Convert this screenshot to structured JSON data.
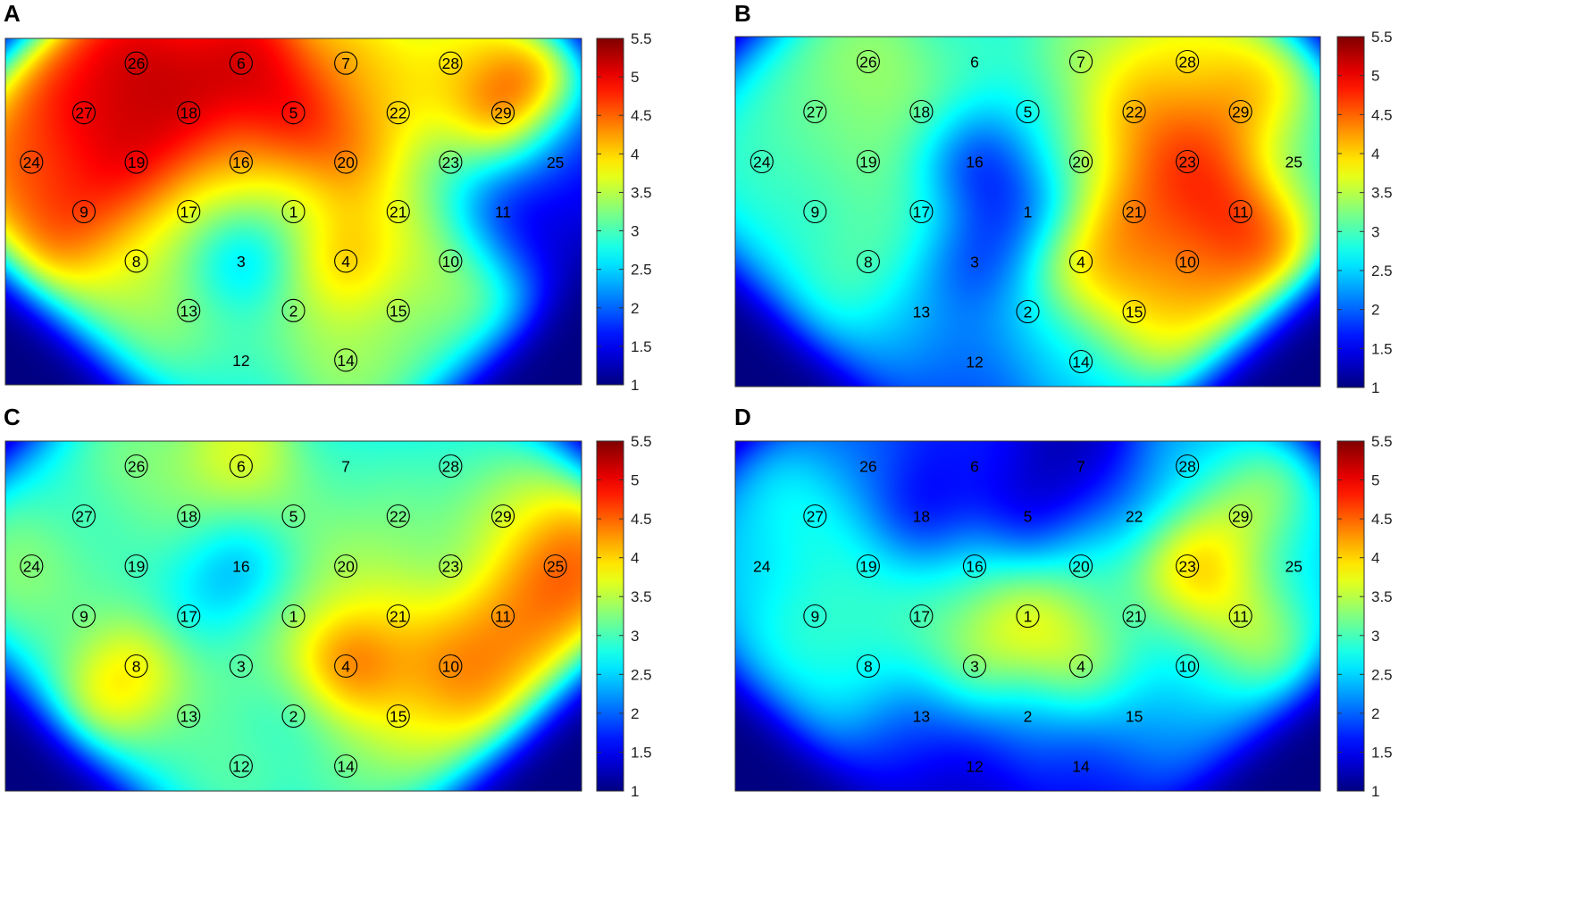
{
  "colormap": {
    "name": "jet",
    "stops": [
      "#00007f",
      "#0000ff",
      "#00ffff",
      "#ffff00",
      "#ff0000",
      "#7f0000"
    ]
  },
  "chart_data": [
    {
      "type": "heatmap",
      "panel_label": "A",
      "colorbar": {
        "range": [
          1,
          5.5
        ],
        "ticks": [
          "1",
          "1.5",
          "2",
          "2.5",
          "3",
          "3.5",
          "4",
          "4.5",
          "5",
          "5.5"
        ]
      },
      "electrodes": [
        {
          "id": "1",
          "col": 5,
          "row": 4,
          "value": 3.5,
          "circled": true
        },
        {
          "id": "2",
          "col": 5,
          "row": 6,
          "value": 3.5,
          "circled": true
        },
        {
          "id": "3",
          "col": 4,
          "row": 5,
          "value": 2.0,
          "circled": false
        },
        {
          "id": "4",
          "col": 6,
          "row": 5,
          "value": 4.7,
          "circled": true
        },
        {
          "id": "5",
          "col": 5,
          "row": 2,
          "value": 5.5,
          "circled": true
        },
        {
          "id": "6",
          "col": 4,
          "row": 1,
          "value": 5.5,
          "circled": true
        },
        {
          "id": "7",
          "col": 6,
          "row": 1,
          "value": 4.3,
          "circled": true
        },
        {
          "id": "8",
          "col": 2,
          "row": 5,
          "value": 3.8,
          "circled": true
        },
        {
          "id": "9",
          "col": 1,
          "row": 4,
          "value": 5.1,
          "circled": true
        },
        {
          "id": "10",
          "col": 8,
          "row": 5,
          "value": 3.7,
          "circled": true
        },
        {
          "id": "11",
          "col": 9,
          "row": 4,
          "value": 1.3,
          "circled": false
        },
        {
          "id": "12",
          "col": 4,
          "row": 7,
          "value": 3.0,
          "circled": false
        },
        {
          "id": "13",
          "col": 3,
          "row": 6,
          "value": 3.6,
          "circled": true
        },
        {
          "id": "14",
          "col": 6,
          "row": 7,
          "value": 3.6,
          "circled": true
        },
        {
          "id": "15",
          "col": 7,
          "row": 6,
          "value": 3.4,
          "circled": true
        },
        {
          "id": "16",
          "col": 4,
          "row": 3,
          "value": 4.3,
          "circled": true
        },
        {
          "id": "17",
          "col": 3,
          "row": 4,
          "value": 3.8,
          "circled": true
        },
        {
          "id": "18",
          "col": 3,
          "row": 2,
          "value": 5.5,
          "circled": true
        },
        {
          "id": "19",
          "col": 2,
          "row": 3,
          "value": 5.5,
          "circled": true
        },
        {
          "id": "20",
          "col": 6,
          "row": 3,
          "value": 4.8,
          "circled": true
        },
        {
          "id": "21",
          "col": 7,
          "row": 4,
          "value": 3.8,
          "circled": true
        },
        {
          "id": "22",
          "col": 7,
          "row": 2,
          "value": 4.2,
          "circled": true
        },
        {
          "id": "23",
          "col": 8,
          "row": 3,
          "value": 3.0,
          "circled": true
        },
        {
          "id": "24",
          "col": 0,
          "row": 3,
          "value": 4.8,
          "circled": true
        },
        {
          "id": "25",
          "col": 10,
          "row": 3,
          "value": 1.6,
          "circled": false
        },
        {
          "id": "26",
          "col": 2,
          "row": 1,
          "value": 5.5,
          "circled": true
        },
        {
          "id": "27",
          "col": 1,
          "row": 2,
          "value": 5.3,
          "circled": true
        },
        {
          "id": "28",
          "col": 8,
          "row": 1,
          "value": 4.0,
          "circled": true
        },
        {
          "id": "29",
          "col": 9,
          "row": 2,
          "value": 5.4,
          "circled": true
        }
      ]
    },
    {
      "type": "heatmap",
      "panel_label": "B",
      "colorbar": {
        "range": [
          1,
          5.5
        ],
        "ticks": [
          "1",
          "1.5",
          "2",
          "2.5",
          "3",
          "3.5",
          "4",
          "4.5",
          "5",
          "5.5"
        ]
      },
      "electrodes": [
        {
          "id": "1",
          "col": 5,
          "row": 4,
          "value": 1.7,
          "circled": false
        },
        {
          "id": "2",
          "col": 5,
          "row": 6,
          "value": 2.7,
          "circled": true
        },
        {
          "id": "3",
          "col": 4,
          "row": 5,
          "value": 1.5,
          "circled": false
        },
        {
          "id": "4",
          "col": 6,
          "row": 5,
          "value": 4.6,
          "circled": true
        },
        {
          "id": "5",
          "col": 5,
          "row": 2,
          "value": 2.8,
          "circled": true
        },
        {
          "id": "6",
          "col": 4,
          "row": 1,
          "value": 3.1,
          "circled": false
        },
        {
          "id": "7",
          "col": 6,
          "row": 1,
          "value": 3.6,
          "circled": true
        },
        {
          "id": "8",
          "col": 2,
          "row": 5,
          "value": 3.3,
          "circled": true
        },
        {
          "id": "9",
          "col": 1,
          "row": 4,
          "value": 3.0,
          "circled": true
        },
        {
          "id": "10",
          "col": 8,
          "row": 5,
          "value": 4.6,
          "circled": true
        },
        {
          "id": "11",
          "col": 9,
          "row": 4,
          "value": 5.3,
          "circled": true
        },
        {
          "id": "12",
          "col": 4,
          "row": 7,
          "value": 2.0,
          "circled": false
        },
        {
          "id": "13",
          "col": 3,
          "row": 6,
          "value": 2.5,
          "circled": false
        },
        {
          "id": "14",
          "col": 6,
          "row": 7,
          "value": 2.6,
          "circled": true
        },
        {
          "id": "15",
          "col": 7,
          "row": 6,
          "value": 4.2,
          "circled": true
        },
        {
          "id": "16",
          "col": 4,
          "row": 3,
          "value": 1.2,
          "circled": false
        },
        {
          "id": "17",
          "col": 3,
          "row": 4,
          "value": 3.2,
          "circled": true
        },
        {
          "id": "18",
          "col": 3,
          "row": 2,
          "value": 3.5,
          "circled": true
        },
        {
          "id": "19",
          "col": 2,
          "row": 3,
          "value": 3.4,
          "circled": true
        },
        {
          "id": "20",
          "col": 6,
          "row": 3,
          "value": 3.5,
          "circled": true
        },
        {
          "id": "21",
          "col": 7,
          "row": 4,
          "value": 4.8,
          "circled": true
        },
        {
          "id": "22",
          "col": 7,
          "row": 2,
          "value": 4.6,
          "circled": true
        },
        {
          "id": "23",
          "col": 8,
          "row": 3,
          "value": 5.2,
          "circled": true
        },
        {
          "id": "24",
          "col": 0,
          "row": 3,
          "value": 3.1,
          "circled": true
        },
        {
          "id": "25",
          "col": 10,
          "row": 3,
          "value": 3.0,
          "circled": false
        },
        {
          "id": "26",
          "col": 2,
          "row": 1,
          "value": 3.6,
          "circled": true
        },
        {
          "id": "27",
          "col": 1,
          "row": 2,
          "value": 3.3,
          "circled": true
        },
        {
          "id": "28",
          "col": 8,
          "row": 1,
          "value": 4.0,
          "circled": true
        },
        {
          "id": "29",
          "col": 9,
          "row": 2,
          "value": 4.6,
          "circled": true
        }
      ]
    },
    {
      "type": "heatmap",
      "panel_label": "C",
      "colorbar": {
        "range": [
          1,
          5.5
        ],
        "ticks": [
          "1",
          "1.5",
          "2",
          "2.5",
          "3",
          "3.5",
          "4",
          "4.5",
          "5",
          "5.5"
        ]
      },
      "electrodes": [
        {
          "id": "1",
          "col": 5,
          "row": 4,
          "value": 3.5,
          "circled": true
        },
        {
          "id": "2",
          "col": 5,
          "row": 6,
          "value": 2.8,
          "circled": true
        },
        {
          "id": "3",
          "col": 4,
          "row": 5,
          "value": 3.3,
          "circled": true
        },
        {
          "id": "4",
          "col": 6,
          "row": 5,
          "value": 5.3,
          "circled": true
        },
        {
          "id": "5",
          "col": 5,
          "row": 2,
          "value": 3.4,
          "circled": true
        },
        {
          "id": "6",
          "col": 4,
          "row": 1,
          "value": 4.1,
          "circled": true
        },
        {
          "id": "7",
          "col": 6,
          "row": 1,
          "value": 3.0,
          "circled": false
        },
        {
          "id": "8",
          "col": 2,
          "row": 5,
          "value": 4.6,
          "circled": true
        },
        {
          "id": "9",
          "col": 1,
          "row": 4,
          "value": 3.2,
          "circled": true
        },
        {
          "id": "10",
          "col": 8,
          "row": 5,
          "value": 4.8,
          "circled": true
        },
        {
          "id": "11",
          "col": 9,
          "row": 4,
          "value": 4.7,
          "circled": true
        },
        {
          "id": "12",
          "col": 4,
          "row": 7,
          "value": 3.3,
          "circled": true
        },
        {
          "id": "13",
          "col": 3,
          "row": 6,
          "value": 3.2,
          "circled": true
        },
        {
          "id": "14",
          "col": 6,
          "row": 7,
          "value": 3.3,
          "circled": true
        },
        {
          "id": "15",
          "col": 7,
          "row": 6,
          "value": 3.9,
          "circled": true
        },
        {
          "id": "16",
          "col": 4,
          "row": 3,
          "value": 2.0,
          "circled": false
        },
        {
          "id": "17",
          "col": 3,
          "row": 4,
          "value": 2.6,
          "circled": true
        },
        {
          "id": "18",
          "col": 3,
          "row": 2,
          "value": 3.4,
          "circled": true
        },
        {
          "id": "19",
          "col": 2,
          "row": 3,
          "value": 3.1,
          "circled": true
        },
        {
          "id": "20",
          "col": 6,
          "row": 3,
          "value": 3.6,
          "circled": true
        },
        {
          "id": "21",
          "col": 7,
          "row": 4,
          "value": 4.0,
          "circled": true
        },
        {
          "id": "22",
          "col": 7,
          "row": 2,
          "value": 3.4,
          "circled": true
        },
        {
          "id": "23",
          "col": 8,
          "row": 3,
          "value": 3.3,
          "circled": true
        },
        {
          "id": "24",
          "col": 0,
          "row": 3,
          "value": 3.6,
          "circled": true
        },
        {
          "id": "25",
          "col": 10,
          "row": 3,
          "value": 5.0,
          "circled": true
        },
        {
          "id": "26",
          "col": 2,
          "row": 1,
          "value": 3.5,
          "circled": true
        },
        {
          "id": "27",
          "col": 1,
          "row": 2,
          "value": 3.0,
          "circled": true
        },
        {
          "id": "28",
          "col": 8,
          "row": 1,
          "value": 3.0,
          "circled": true
        },
        {
          "id": "29",
          "col": 9,
          "row": 2,
          "value": 3.8,
          "circled": true
        }
      ]
    },
    {
      "type": "heatmap",
      "panel_label": "D",
      "colorbar": {
        "range": [
          1,
          5.5
        ],
        "ticks": [
          "1",
          "1.5",
          "2",
          "2.5",
          "3",
          "3.5",
          "4",
          "4.5",
          "5",
          "5.5"
        ]
      },
      "electrodes": [
        {
          "id": "1",
          "col": 5,
          "row": 4,
          "value": 4.3,
          "circled": true
        },
        {
          "id": "2",
          "col": 5,
          "row": 6,
          "value": 2.3,
          "circled": false
        },
        {
          "id": "3",
          "col": 4,
          "row": 5,
          "value": 3.8,
          "circled": true
        },
        {
          "id": "4",
          "col": 6,
          "row": 5,
          "value": 4.0,
          "circled": true
        },
        {
          "id": "5",
          "col": 5,
          "row": 2,
          "value": 1.1,
          "circled": false
        },
        {
          "id": "6",
          "col": 4,
          "row": 1,
          "value": 1.8,
          "circled": false
        },
        {
          "id": "7",
          "col": 6,
          "row": 1,
          "value": 1.2,
          "circled": false
        },
        {
          "id": "8",
          "col": 2,
          "row": 5,
          "value": 2.9,
          "circled": true
        },
        {
          "id": "9",
          "col": 1,
          "row": 4,
          "value": 3.1,
          "circled": true
        },
        {
          "id": "10",
          "col": 8,
          "row": 5,
          "value": 2.7,
          "circled": true
        },
        {
          "id": "11",
          "col": 9,
          "row": 4,
          "value": 4.0,
          "circled": true
        },
        {
          "id": "12",
          "col": 4,
          "row": 7,
          "value": 1.3,
          "circled": false
        },
        {
          "id": "13",
          "col": 3,
          "row": 6,
          "value": 1.8,
          "circled": false
        },
        {
          "id": "14",
          "col": 6,
          "row": 7,
          "value": 1.6,
          "circled": false
        },
        {
          "id": "15",
          "col": 7,
          "row": 6,
          "value": 2.3,
          "circled": false
        },
        {
          "id": "16",
          "col": 4,
          "row": 3,
          "value": 3.0,
          "circled": true
        },
        {
          "id": "17",
          "col": 3,
          "row": 4,
          "value": 3.2,
          "circled": true
        },
        {
          "id": "18",
          "col": 3,
          "row": 2,
          "value": 1.2,
          "circled": false
        },
        {
          "id": "19",
          "col": 2,
          "row": 3,
          "value": 3.0,
          "circled": true
        },
        {
          "id": "20",
          "col": 6,
          "row": 3,
          "value": 3.1,
          "circled": true
        },
        {
          "id": "21",
          "col": 7,
          "row": 4,
          "value": 2.9,
          "circled": true
        },
        {
          "id": "22",
          "col": 7,
          "row": 2,
          "value": 2.2,
          "circled": false
        },
        {
          "id": "23",
          "col": 8,
          "row": 3,
          "value": 4.9,
          "circled": true
        },
        {
          "id": "24",
          "col": 0,
          "row": 3,
          "value": 2.6,
          "circled": false
        },
        {
          "id": "25",
          "col": 10,
          "row": 3,
          "value": 2.6,
          "circled": false
        },
        {
          "id": "26",
          "col": 2,
          "row": 1,
          "value": 2.1,
          "circled": false
        },
        {
          "id": "27",
          "col": 1,
          "row": 2,
          "value": 3.0,
          "circled": true
        },
        {
          "id": "28",
          "col": 8,
          "row": 1,
          "value": 2.5,
          "circled": true
        },
        {
          "id": "29",
          "col": 9,
          "row": 2,
          "value": 3.9,
          "circled": true
        }
      ]
    }
  ]
}
